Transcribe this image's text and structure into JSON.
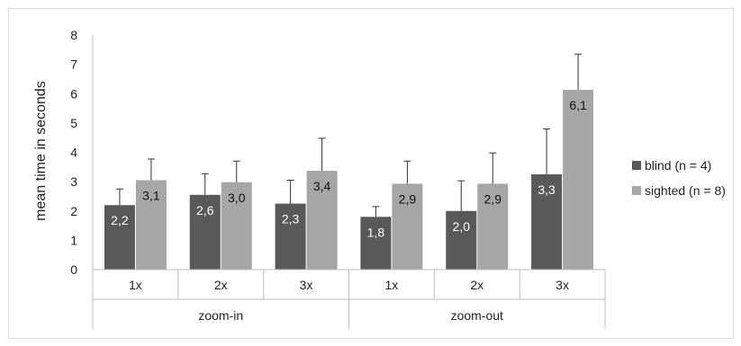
{
  "chart_data": {
    "type": "bar",
    "ylabel": "mean time in seconds",
    "ylim": [
      0,
      8
    ],
    "yticks": [
      "0",
      "1",
      "2",
      "3",
      "4",
      "5",
      "6",
      "7",
      "8"
    ],
    "groups": [
      {
        "label": "zoom-in",
        "categories": [
          "1x",
          "2x",
          "3x"
        ]
      },
      {
        "label": "zoom-out",
        "categories": [
          "1x",
          "2x",
          "3x"
        ]
      }
    ],
    "categories": [
      "1x",
      "2x",
      "3x",
      "1x",
      "2x",
      "3x"
    ],
    "series": [
      {
        "name": "blind (n = 4)",
        "color": "#595959",
        "values": [
          2.2,
          2.55,
          2.25,
          1.8,
          2.0,
          3.25
        ],
        "labels": [
          "2,2",
          "2,6",
          "2,3",
          "1,8",
          "2,0",
          "3,3"
        ],
        "error_top": [
          2.75,
          3.27,
          3.05,
          2.15,
          3.03,
          4.8
        ]
      },
      {
        "name": "sighted (n = 8)",
        "color": "#a6a6a6",
        "values": [
          3.05,
          2.98,
          3.37,
          2.93,
          2.93,
          6.13
        ],
        "labels": [
          "3,1",
          "3,0",
          "3,4",
          "2,9",
          "2,9",
          "6,1"
        ],
        "error_top": [
          3.77,
          3.7,
          4.48,
          3.7,
          3.98,
          7.35
        ]
      }
    ],
    "legend_position": "right",
    "grid": false
  }
}
